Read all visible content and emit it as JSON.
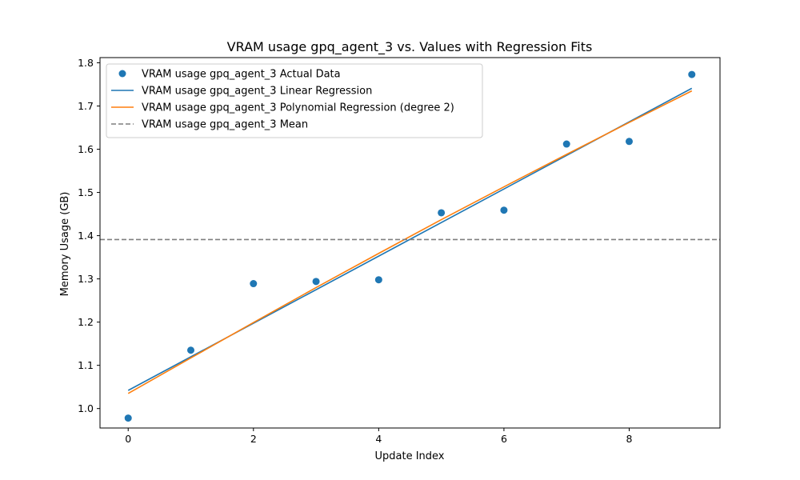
{
  "chart_data": {
    "type": "scatter",
    "title": "VRAM usage gpq_agent_3 vs. Values with Regression Fits",
    "xlabel": "Update Index",
    "ylabel": "Memory Usage (GB)",
    "xlim": [
      -0.45,
      9.45
    ],
    "ylim": [
      0.955,
      1.812
    ],
    "xticks": [
      0,
      2,
      4,
      6,
      8
    ],
    "xtick_labels": [
      "0",
      "2",
      "4",
      "6",
      "8"
    ],
    "yticks": [
      1.0,
      1.1,
      1.2,
      1.3,
      1.4,
      1.5,
      1.6,
      1.7,
      1.8
    ],
    "ytick_labels": [
      "1.0",
      "1.1",
      "1.2",
      "1.3",
      "1.4",
      "1.5",
      "1.6",
      "1.7",
      "1.8"
    ],
    "grid": false,
    "legend_position": "top-left",
    "series": [
      {
        "name": "VRAM usage gpq_agent_3 Actual Data",
        "kind": "scatter",
        "color": "#1f77b4",
        "x": [
          0,
          1,
          2,
          3,
          4,
          5,
          6,
          7,
          8,
          9
        ],
        "y": [
          0.978,
          1.135,
          1.289,
          1.294,
          1.298,
          1.453,
          1.459,
          1.612,
          1.618,
          1.773
        ]
      },
      {
        "name": "VRAM usage gpq_agent_3 Linear Regression",
        "kind": "line",
        "color": "#1f77b4",
        "x": [
          0,
          9
        ],
        "y": [
          1.042,
          1.741
        ]
      },
      {
        "name": "VRAM usage gpq_agent_3 Polynomial Regression (degree 2)",
        "kind": "line",
        "color": "#ff7f0e",
        "x": [
          0,
          1,
          2,
          3,
          4,
          5,
          6,
          7,
          8,
          9
        ],
        "y": [
          1.035,
          1.117,
          1.199,
          1.28,
          1.359,
          1.437,
          1.513,
          1.588,
          1.662,
          1.735
        ]
      },
      {
        "name": "VRAM usage gpq_agent_3 Mean",
        "kind": "hline",
        "color": "#7f7f7f",
        "y": 1.391
      }
    ]
  }
}
